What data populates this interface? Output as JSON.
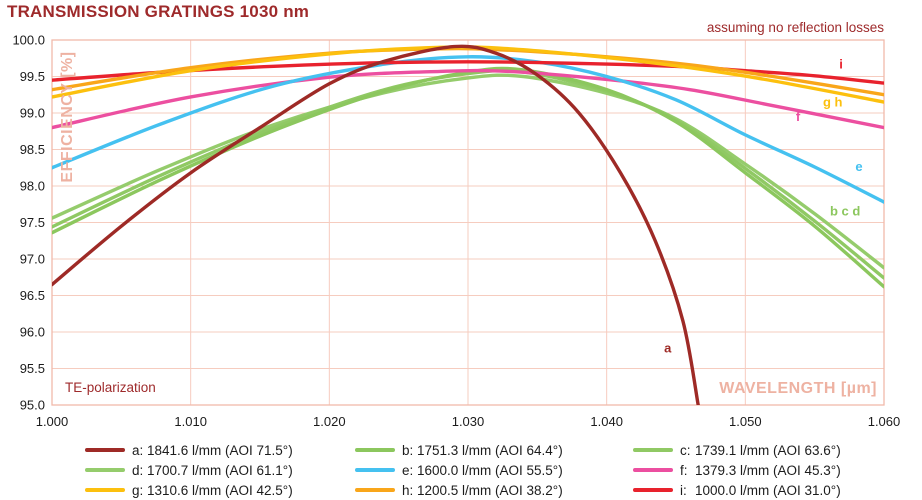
{
  "title": "TRANSMISSION GRATINGS 1030 nm",
  "annotation_top_right": "assuming no reflection losses",
  "annotation_bottom_left": "TE-polarization",
  "colors": {
    "title_text": "#9e2a2b",
    "annotation_text": "#9e2a2b",
    "grid": "#f6ccbf",
    "plot_border": "#f0baab",
    "axis_title_text": "#eeb2a2",
    "tick_text": "#1b1b1b"
  },
  "chart_data": {
    "type": "line",
    "title": "TRANSMISSION GRATINGS 1030 nm",
    "xlabel": "WAVELENGTH [µm]",
    "ylabel": "EFFICIENCY [%]",
    "xlim": [
      1.0,
      1.06
    ],
    "ylim": [
      95.0,
      100.0
    ],
    "grid": true,
    "legend_position": "bottom",
    "x_ticks": {
      "values": [
        1.0,
        1.01,
        1.02,
        1.03,
        1.04,
        1.05,
        1.06
      ],
      "labels": [
        "1.000",
        "1.010",
        "1.020",
        "1.030",
        "1.040",
        "1.050",
        "1.060"
      ]
    },
    "y_ticks": {
      "values": [
        95.0,
        95.5,
        96.0,
        96.5,
        97.0,
        97.5,
        98.0,
        98.5,
        99.0,
        99.5,
        100.0
      ],
      "labels": [
        "95.0",
        "95.5",
        "96.0",
        "96.5",
        "97.0",
        "97.5",
        "98.0",
        "98.5",
        "99.0",
        "99.5",
        "100.0"
      ]
    },
    "series": [
      {
        "id": "a",
        "letter": "a:",
        "spec": "1841.6 l/mm (AOI 71.5°)",
        "lines_per_mm": 1841.6,
        "aoi_deg": 71.5,
        "color": "#9e2a26",
        "points": [
          [
            1.0,
            96.65
          ],
          [
            1.005,
            97.45
          ],
          [
            1.01,
            98.18
          ],
          [
            1.015,
            98.8
          ],
          [
            1.02,
            99.4
          ],
          [
            1.024,
            99.71
          ],
          [
            1.029,
            99.91
          ],
          [
            1.032,
            99.82
          ],
          [
            1.035,
            99.52
          ],
          [
            1.038,
            99.0
          ],
          [
            1.041,
            98.18
          ],
          [
            1.0435,
            97.25
          ],
          [
            1.0455,
            96.15
          ],
          [
            1.0466,
            95.0
          ]
        ]
      },
      {
        "id": "b",
        "letter": "b:",
        "spec": "1751.3 l/mm (AOI 64.4°)",
        "lines_per_mm": 1751.3,
        "aoi_deg": 64.4,
        "color": "#8cc75e",
        "points": [
          [
            1.0,
            97.36
          ],
          [
            1.008,
            98.1
          ],
          [
            1.016,
            98.76
          ],
          [
            1.024,
            99.3
          ],
          [
            1.03,
            99.56
          ],
          [
            1.034,
            99.59
          ],
          [
            1.04,
            99.32
          ],
          [
            1.045,
            98.88
          ],
          [
            1.05,
            98.18
          ],
          [
            1.055,
            97.45
          ],
          [
            1.06,
            96.62
          ]
        ]
      },
      {
        "id": "c",
        "letter": "c:",
        "spec": "1739.1 l/mm (AOI 63.6°)",
        "lines_per_mm": 1739.1,
        "aoi_deg": 63.6,
        "color": "#90c964",
        "points": [
          [
            1.0,
            97.44
          ],
          [
            1.008,
            98.16
          ],
          [
            1.016,
            98.8
          ],
          [
            1.024,
            99.32
          ],
          [
            1.03,
            99.54
          ],
          [
            1.034,
            99.56
          ],
          [
            1.04,
            99.3
          ],
          [
            1.045,
            98.9
          ],
          [
            1.05,
            98.24
          ],
          [
            1.055,
            97.52
          ],
          [
            1.06,
            96.74
          ]
        ]
      },
      {
        "id": "d",
        "letter": "d:",
        "spec": "1700.7 l/mm (AOI 61.1°)",
        "lines_per_mm": 1700.7,
        "aoi_deg": 61.1,
        "color": "#95cc6c",
        "points": [
          [
            1.0,
            97.56
          ],
          [
            1.008,
            98.24
          ],
          [
            1.016,
            98.84
          ],
          [
            1.024,
            99.28
          ],
          [
            1.03,
            99.48
          ],
          [
            1.034,
            99.5
          ],
          [
            1.04,
            99.27
          ],
          [
            1.045,
            98.92
          ],
          [
            1.05,
            98.3
          ],
          [
            1.055,
            97.62
          ],
          [
            1.06,
            96.88
          ]
        ]
      },
      {
        "id": "e",
        "letter": "e:",
        "spec": "1600.0 l/mm (AOI 55.5°)",
        "lines_per_mm": 1600.0,
        "aoi_deg": 55.5,
        "color": "#45c1f0",
        "points": [
          [
            1.0,
            98.25
          ],
          [
            1.008,
            98.86
          ],
          [
            1.016,
            99.37
          ],
          [
            1.024,
            99.67
          ],
          [
            1.03,
            99.77
          ],
          [
            1.035,
            99.7
          ],
          [
            1.04,
            99.5
          ],
          [
            1.045,
            99.18
          ],
          [
            1.05,
            98.7
          ],
          [
            1.055,
            98.26
          ],
          [
            1.06,
            97.78
          ]
        ]
      },
      {
        "id": "f",
        "letter": "f:",
        "spec": "1379.3 l/mm (AOI 45.3°)",
        "lines_per_mm": 1379.3,
        "aoi_deg": 45.3,
        "color": "#ec4fa0",
        "points": [
          [
            1.0,
            98.8
          ],
          [
            1.01,
            99.22
          ],
          [
            1.02,
            99.49
          ],
          [
            1.028,
            99.57
          ],
          [
            1.033,
            99.57
          ],
          [
            1.04,
            99.46
          ],
          [
            1.046,
            99.32
          ],
          [
            1.052,
            99.1
          ],
          [
            1.06,
            98.8
          ]
        ]
      },
      {
        "id": "g",
        "letter": "g:",
        "spec": "1310.6 l/mm (AOI 42.5°)",
        "lines_per_mm": 1310.6,
        "aoi_deg": 42.5,
        "color": "#fcc00e",
        "points": [
          [
            1.0,
            99.22
          ],
          [
            1.01,
            99.58
          ],
          [
            1.02,
            99.81
          ],
          [
            1.028,
            99.9
          ],
          [
            1.033,
            99.88
          ],
          [
            1.04,
            99.76
          ],
          [
            1.046,
            99.62
          ],
          [
            1.052,
            99.44
          ],
          [
            1.06,
            99.15
          ]
        ]
      },
      {
        "id": "h",
        "letter": "h:",
        "spec": "1200.5 l/mm (AOI 38.2°)",
        "lines_per_mm": 1200.5,
        "aoi_deg": 38.2,
        "color": "#f9a61a",
        "points": [
          [
            1.0,
            99.32
          ],
          [
            1.01,
            99.62
          ],
          [
            1.02,
            99.82
          ],
          [
            1.028,
            99.88
          ],
          [
            1.033,
            99.86
          ],
          [
            1.04,
            99.77
          ],
          [
            1.046,
            99.66
          ],
          [
            1.052,
            99.5
          ],
          [
            1.06,
            99.25
          ]
        ]
      },
      {
        "id": "i",
        "letter": "i:",
        "spec": "1000.0 l/mm (AOI 31.0°)",
        "lines_per_mm": 1000.0,
        "aoi_deg": 31.0,
        "color": "#e8222d",
        "points": [
          [
            1.0,
            99.45
          ],
          [
            1.008,
            99.56
          ],
          [
            1.016,
            99.64
          ],
          [
            1.024,
            99.69
          ],
          [
            1.032,
            99.7
          ],
          [
            1.04,
            99.67
          ],
          [
            1.046,
            99.63
          ],
          [
            1.05,
            99.58
          ],
          [
            1.055,
            99.51
          ],
          [
            1.06,
            99.41
          ]
        ]
      }
    ],
    "draw_order": [
      "d",
      "c",
      "b",
      "f",
      "e",
      "i",
      "h",
      "g",
      "a"
    ],
    "curve_labels": [
      {
        "text": "a",
        "series": "a",
        "x": 1.0444,
        "y": 95.78
      },
      {
        "text": "b c d",
        "series": "b",
        "x": 1.0572,
        "y": 97.66
      },
      {
        "text": "e",
        "series": "e",
        "x": 1.0582,
        "y": 98.27
      },
      {
        "text": "f",
        "series": "f",
        "x": 1.0538,
        "y": 98.95
      },
      {
        "text": "g h",
        "series": "g",
        "x": 1.0563,
        "y": 99.15
      },
      {
        "text": "i",
        "series": "i",
        "x": 1.0569,
        "y": 99.67
      }
    ]
  }
}
